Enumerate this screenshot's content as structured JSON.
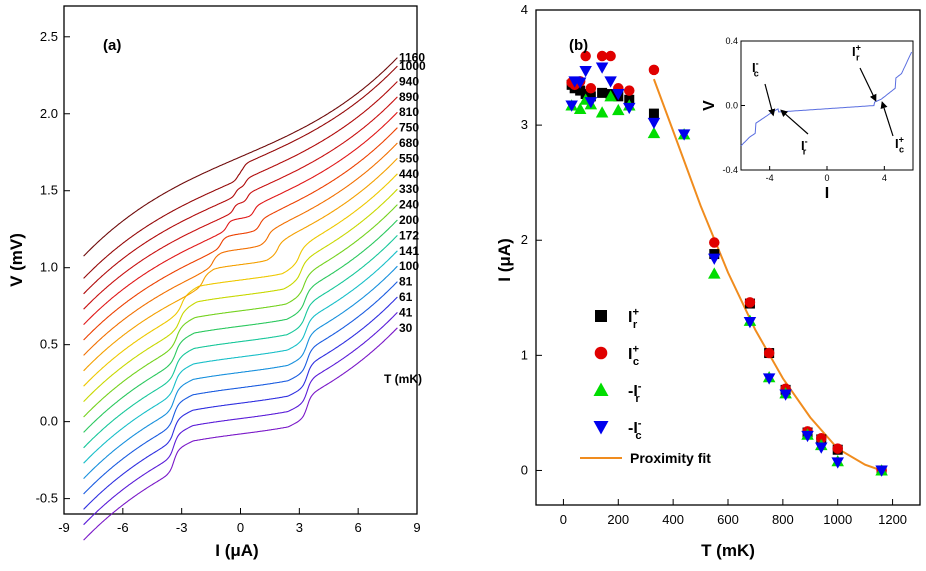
{
  "chart_data": [
    {
      "type": "line",
      "panel_label": "(a)",
      "xlabel": "I (μA)",
      "ylabel": "V (mV)",
      "xlim": [
        -9,
        9
      ],
      "ylim": [
        -0.6,
        2.7
      ],
      "xticks": [
        -9,
        -6,
        -3,
        0,
        3,
        6,
        9
      ],
      "yticks": [
        -0.5,
        0.0,
        0.5,
        1.0,
        1.5,
        2.0,
        2.5
      ],
      "ytick_labels": [
        "-0.5",
        "0.0",
        "0.5",
        "1.0",
        "1.5",
        "2.0",
        "2.5"
      ],
      "temperature_label": "T (mK)",
      "series": [
        {
          "name": "30",
          "color": "#7a18c8",
          "offset": 0.0,
          "ic": 3.4
        },
        {
          "name": "41",
          "color": "#5a1cd8",
          "offset": 0.1,
          "ic": 3.4
        },
        {
          "name": "61",
          "color": "#2f2fe0",
          "offset": 0.2,
          "ic": 3.4
        },
        {
          "name": "81",
          "color": "#1a5ce0",
          "offset": 0.3,
          "ic": 3.4
        },
        {
          "name": "100",
          "color": "#1890dd",
          "offset": 0.4,
          "ic": 3.38
        },
        {
          "name": "141",
          "color": "#19bfc8",
          "offset": 0.5,
          "ic": 3.35
        },
        {
          "name": "172",
          "color": "#17c79a",
          "offset": 0.6,
          "ic": 3.32
        },
        {
          "name": "200",
          "color": "#2bc85e",
          "offset": 0.7,
          "ic": 3.3
        },
        {
          "name": "240",
          "color": "#74d21e",
          "offset": 0.8,
          "ic": 3.25
        },
        {
          "name": "330",
          "color": "#c8d800",
          "offset": 0.9,
          "ic": 3.1
        },
        {
          "name": "440",
          "color": "#eec800",
          "offset": 1.0,
          "ic": 3.0
        },
        {
          "name": "550",
          "color": "#f4a000",
          "offset": 1.1,
          "ic": 1.9
        },
        {
          "name": "680",
          "color": "#f27000",
          "offset": 1.2,
          "ic": 1.4
        },
        {
          "name": "750",
          "color": "#ec4000",
          "offset": 1.3,
          "ic": 1.0
        },
        {
          "name": "810",
          "color": "#e01818",
          "offset": 1.4,
          "ic": 0.7
        },
        {
          "name": "890",
          "color": "#c81010",
          "offset": 1.5,
          "ic": 0.35
        },
        {
          "name": "940",
          "color": "#b00a0a",
          "offset": 1.6,
          "ic": 0.25
        },
        {
          "name": "1000",
          "color": "#950808",
          "offset": 1.7,
          "ic": 0.15
        },
        {
          "name": "1160",
          "color": "#6e0a0a",
          "offset": 1.8,
          "ic": 0.0
        }
      ]
    },
    {
      "type": "scatter",
      "panel_label": "(b)",
      "xlabel": "T (mK)",
      "ylabel": "I (μA)",
      "xlim": [
        -100,
        1300
      ],
      "ylim": [
        -0.3,
        4
      ],
      "xticks": [
        0,
        200,
        400,
        600,
        800,
        1000,
        1200
      ],
      "yticks": [
        0,
        1,
        2,
        3,
        4
      ],
      "series": [
        {
          "name": "I_r^+",
          "label_main": "I",
          "label_sup": "+",
          "label_sub": "r",
          "marker": "square",
          "color": "#000000",
          "x": [
            30,
            41,
            61,
            81,
            100,
            141,
            172,
            200,
            240,
            330,
            550,
            680,
            750,
            810,
            890,
            940,
            1000,
            1160
          ],
          "y": [
            3.35,
            3.32,
            3.3,
            3.27,
            3.25,
            3.28,
            3.27,
            3.25,
            3.22,
            3.1,
            1.88,
            1.45,
            1.02,
            0.7,
            0.33,
            0.27,
            0.18,
            0.0
          ]
        },
        {
          "name": "I_c^+",
          "label_main": "I",
          "label_sup": "+",
          "label_sub": "c",
          "marker": "circle",
          "color": "#e00000",
          "x": [
            30,
            41,
            61,
            81,
            100,
            141,
            172,
            200,
            240,
            330,
            550,
            680,
            750,
            810,
            890,
            940,
            1000,
            1160
          ],
          "y": [
            3.37,
            3.35,
            3.38,
            3.6,
            3.32,
            3.6,
            3.6,
            3.32,
            3.3,
            3.48,
            1.98,
            1.46,
            1.02,
            0.71,
            0.34,
            0.28,
            0.19,
            0.0
          ]
        },
        {
          "name": "-I_r^-",
          "label_main": "-I",
          "label_sup": "-",
          "label_sub": "r",
          "marker": "triangle-up",
          "color": "#00dd00",
          "x": [
            30,
            61,
            81,
            100,
            141,
            172,
            200,
            240,
            330,
            440,
            550,
            680,
            750,
            810,
            890,
            940,
            1000,
            1160
          ],
          "y": [
            3.17,
            3.14,
            3.22,
            3.18,
            3.11,
            3.25,
            3.13,
            3.17,
            2.93,
            2.92,
            1.71,
            1.3,
            0.81,
            0.67,
            0.31,
            0.22,
            0.08,
            0.0
          ]
        },
        {
          "name": "-I_c^-",
          "label_main": "-I",
          "label_sup": "-",
          "label_sub": "c",
          "marker": "triangle-down",
          "color": "#0000ee",
          "x": [
            30,
            41,
            61,
            81,
            100,
            141,
            172,
            200,
            240,
            330,
            440,
            550,
            680,
            750,
            810,
            890,
            940,
            1000,
            1160
          ],
          "y": [
            3.17,
            3.38,
            3.37,
            3.47,
            3.2,
            3.5,
            3.38,
            3.27,
            3.15,
            3.02,
            2.92,
            1.84,
            1.29,
            0.8,
            0.66,
            0.3,
            0.2,
            0.07,
            0.0
          ]
        },
        {
          "name": "Proximity fit",
          "marker": "line",
          "color": "#f08c1e",
          "x": [
            330,
            400,
            500,
            600,
            700,
            800,
            900,
            1000,
            1100,
            1160
          ],
          "y": [
            3.4,
            2.95,
            2.3,
            1.72,
            1.22,
            0.8,
            0.46,
            0.19,
            0.05,
            0.0
          ]
        }
      ],
      "inset": {
        "xlabel": "I",
        "ylabel": "V",
        "xlim": [
          -6,
          6
        ],
        "ylim": [
          -0.4,
          0.4
        ],
        "xticks": [
          -4,
          0,
          4
        ],
        "yticks": [
          -0.4,
          0.0,
          0.4
        ],
        "ytick_labels": [
          "-0.4",
          "0.0",
          "0.4"
        ],
        "annotations": [
          {
            "label_main": "I",
            "label_sup": "-",
            "label_sub": "c"
          },
          {
            "label_main": "I",
            "label_sup": "-",
            "label_sub": "r"
          },
          {
            "label_main": "I",
            "label_sup": "+",
            "label_sub": "r"
          },
          {
            "label_main": "I",
            "label_sup": "+",
            "label_sub": "c"
          }
        ],
        "trace_color": "#5a6ee0"
      }
    }
  ]
}
